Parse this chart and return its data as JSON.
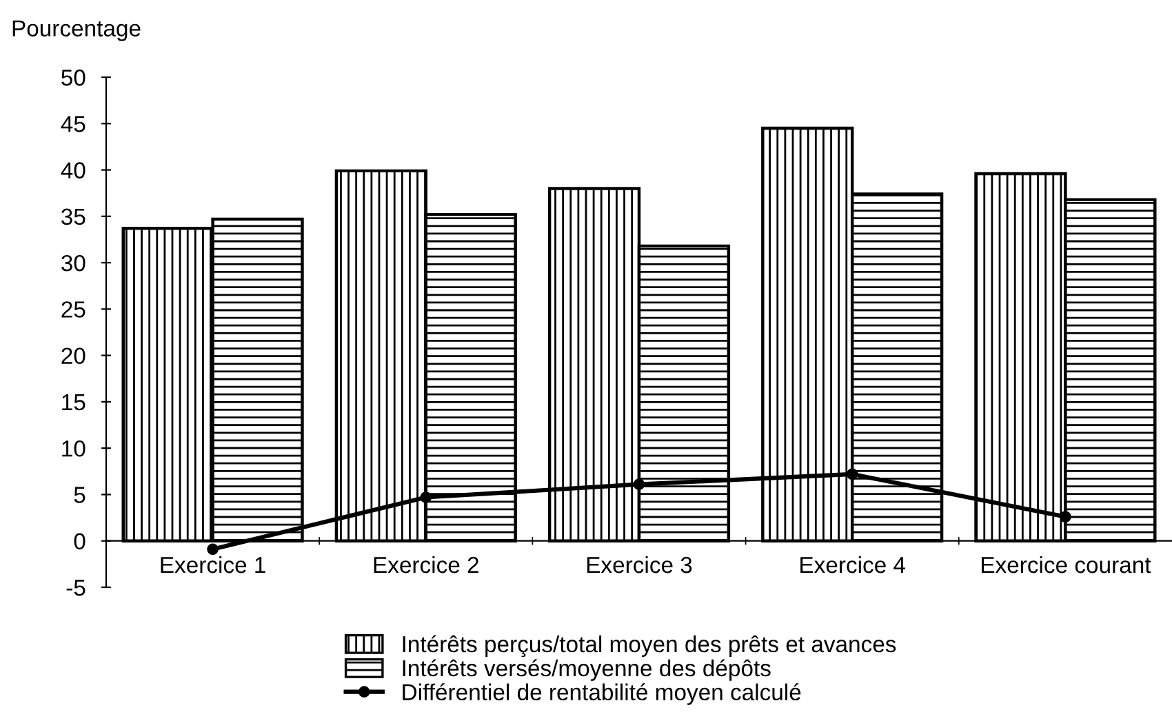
{
  "chart_data": {
    "type": "bar",
    "ylabel": "Pourcentage",
    "categories": [
      "Exercice 1",
      "Exercice 2",
      "Exercice 3",
      "Exercice 4",
      "Exercice courant"
    ],
    "series": [
      {
        "name": "Intérêts perçus/total moyen des prêts et avances",
        "color": "#000000",
        "values": [
          33.7,
          39.9,
          38.0,
          44.5,
          39.6
        ]
      },
      {
        "name": "Intérêts versés/moyenne des dépôts",
        "color": "#000000",
        "values": [
          34.7,
          35.2,
          31.8,
          37.4,
          36.8
        ]
      },
      {
        "name": "Différentiel de rentabilité moyen calculé",
        "type": "line",
        "color": "#000000",
        "values": [
          -0.9,
          4.7,
          6.1,
          7.2,
          2.6
        ]
      }
    ],
    "ylim": [
      -5,
      50
    ],
    "yticks": [
      -5,
      0,
      5,
      10,
      15,
      20,
      25,
      30,
      35,
      40,
      45,
      50
    ],
    "grid": false,
    "legend": "bottom",
    "marker": "circle",
    "line_style": "solid"
  }
}
